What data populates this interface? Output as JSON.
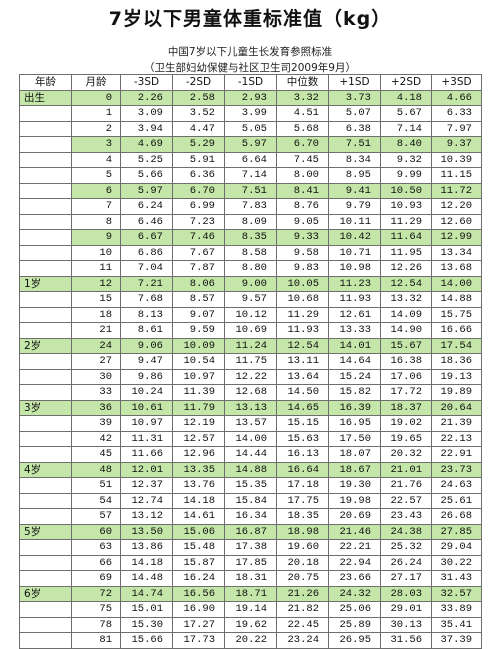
{
  "title": "7岁以下男童体重标准值（kg）",
  "subtitle": "中国7岁以下儿童生长发育参照标准",
  "source": "（卫生部妇幼保健与社区卫生司2009年9月）",
  "headers": [
    "年龄",
    "月龄",
    "-3SD",
    "-2SD",
    "-1SD",
    "中位数",
    "+1SD",
    "+2SD",
    "+3SD"
  ],
  "rows": [
    {
      "age": "出生",
      "month": "0",
      "values": [
        "2.26",
        "2.58",
        "2.93",
        "3.32",
        "3.73",
        "4.18",
        "4.66"
      ],
      "green": true
    },
    {
      "age": "",
      "month": "1",
      "values": [
        "3.09",
        "3.52",
        "3.99",
        "4.51",
        "5.07",
        "5.67",
        "6.33"
      ],
      "green": false
    },
    {
      "age": "",
      "month": "2",
      "values": [
        "3.94",
        "4.47",
        "5.05",
        "5.68",
        "6.38",
        "7.14",
        "7.97"
      ],
      "green": false
    },
    {
      "age": "",
      "month": "3",
      "values": [
        "4.69",
        "5.29",
        "5.97",
        "6.70",
        "7.51",
        "8.40",
        "9.37"
      ],
      "green": true
    },
    {
      "age": "",
      "month": "4",
      "values": [
        "5.25",
        "5.91",
        "6.64",
        "7.45",
        "8.34",
        "9.32",
        "10.39"
      ],
      "green": false
    },
    {
      "age": "",
      "month": "5",
      "values": [
        "5.66",
        "6.36",
        "7.14",
        "8.00",
        "8.95",
        "9.99",
        "11.15"
      ],
      "green": false
    },
    {
      "age": "",
      "month": "6",
      "values": [
        "5.97",
        "6.70",
        "7.51",
        "8.41",
        "9.41",
        "10.50",
        "11.72"
      ],
      "green": true
    },
    {
      "age": "",
      "month": "7",
      "values": [
        "6.24",
        "6.99",
        "7.83",
        "8.76",
        "9.79",
        "10.93",
        "12.20"
      ],
      "green": false
    },
    {
      "age": "",
      "month": "8",
      "values": [
        "6.46",
        "7.23",
        "8.09",
        "9.05",
        "10.11",
        "11.29",
        "12.60"
      ],
      "green": false
    },
    {
      "age": "",
      "month": "9",
      "values": [
        "6.67",
        "7.46",
        "8.35",
        "9.33",
        "10.42",
        "11.64",
        "12.99"
      ],
      "green": true
    },
    {
      "age": "",
      "month": "10",
      "values": [
        "6.86",
        "7.67",
        "8.58",
        "9.58",
        "10.71",
        "11.95",
        "13.34"
      ],
      "green": false
    },
    {
      "age": "",
      "month": "11",
      "values": [
        "7.04",
        "7.87",
        "8.80",
        "9.83",
        "10.98",
        "12.26",
        "13.68"
      ],
      "green": false
    },
    {
      "age": "1岁",
      "month": "12",
      "values": [
        "7.21",
        "8.06",
        "9.00",
        "10.05",
        "11.23",
        "12.54",
        "14.00"
      ],
      "green": true
    },
    {
      "age": "",
      "month": "15",
      "values": [
        "7.68",
        "8.57",
        "9.57",
        "10.68",
        "11.93",
        "13.32",
        "14.88"
      ],
      "green": false
    },
    {
      "age": "",
      "month": "18",
      "values": [
        "8.13",
        "9.07",
        "10.12",
        "11.29",
        "12.61",
        "14.09",
        "15.75"
      ],
      "green": false
    },
    {
      "age": "",
      "month": "21",
      "values": [
        "8.61",
        "9.59",
        "10.69",
        "11.93",
        "13.33",
        "14.90",
        "16.66"
      ],
      "green": false
    },
    {
      "age": "2岁",
      "month": "24",
      "values": [
        "9.06",
        "10.09",
        "11.24",
        "12.54",
        "14.01",
        "15.67",
        "17.54"
      ],
      "green": true
    },
    {
      "age": "",
      "month": "27",
      "values": [
        "9.47",
        "10.54",
        "11.75",
        "13.11",
        "14.64",
        "16.38",
        "18.36"
      ],
      "green": false
    },
    {
      "age": "",
      "month": "30",
      "values": [
        "9.86",
        "10.97",
        "12.22",
        "13.64",
        "15.24",
        "17.06",
        "19.13"
      ],
      "green": false
    },
    {
      "age": "",
      "month": "33",
      "values": [
        "10.24",
        "11.39",
        "12.68",
        "14.50",
        "15.82",
        "17.72",
        "19.89"
      ],
      "green": false
    },
    {
      "age": "3岁",
      "month": "36",
      "values": [
        "10.61",
        "11.79",
        "13.13",
        "14.65",
        "16.39",
        "18.37",
        "20.64"
      ],
      "green": true
    },
    {
      "age": "",
      "month": "39",
      "values": [
        "10.97",
        "12.19",
        "13.57",
        "15.15",
        "16.95",
        "19.02",
        "21.39"
      ],
      "green": false
    },
    {
      "age": "",
      "month": "42",
      "values": [
        "11.31",
        "12.57",
        "14.00",
        "15.63",
        "17.50",
        "19.65",
        "22.13"
      ],
      "green": false
    },
    {
      "age": "",
      "month": "45",
      "values": [
        "11.66",
        "12.96",
        "14.44",
        "16.13",
        "18.07",
        "20.32",
        "22.91"
      ],
      "green": false
    },
    {
      "age": "4岁",
      "month": "48",
      "values": [
        "12.01",
        "13.35",
        "14.88",
        "16.64",
        "18.67",
        "21.01",
        "23.73"
      ],
      "green": true
    },
    {
      "age": "",
      "month": "51",
      "values": [
        "12.37",
        "13.76",
        "15.35",
        "17.18",
        "19.30",
        "21.76",
        "24.63"
      ],
      "green": false
    },
    {
      "age": "",
      "month": "54",
      "values": [
        "12.74",
        "14.18",
        "15.84",
        "17.75",
        "19.98",
        "22.57",
        "25.61"
      ],
      "green": false
    },
    {
      "age": "",
      "month": "57",
      "values": [
        "13.12",
        "14.61",
        "16.34",
        "18.35",
        "20.69",
        "23.43",
        "26.68"
      ],
      "green": false
    },
    {
      "age": "5岁",
      "month": "60",
      "values": [
        "13.50",
        "15.06",
        "16.87",
        "18.98",
        "21.46",
        "24.38",
        "27.85"
      ],
      "green": true
    },
    {
      "age": "",
      "month": "63",
      "values": [
        "13.86",
        "15.48",
        "17.38",
        "19.60",
        "22.21",
        "25.32",
        "29.04"
      ],
      "green": false
    },
    {
      "age": "",
      "month": "66",
      "values": [
        "14.18",
        "15.87",
        "17.85",
        "20.18",
        "22.94",
        "26.24",
        "30.22"
      ],
      "green": false
    },
    {
      "age": "",
      "month": "69",
      "values": [
        "14.48",
        "16.24",
        "18.31",
        "20.75",
        "23.66",
        "27.17",
        "31.43"
      ],
      "green": false
    },
    {
      "age": "6岁",
      "month": "72",
      "values": [
        "14.74",
        "16.56",
        "18.71",
        "21.26",
        "24.32",
        "28.03",
        "32.57"
      ],
      "green": true
    },
    {
      "age": "",
      "month": "75",
      "values": [
        "15.01",
        "16.90",
        "19.14",
        "21.82",
        "25.06",
        "29.01",
        "33.89"
      ],
      "green": false
    },
    {
      "age": "",
      "month": "78",
      "values": [
        "15.30",
        "17.27",
        "19.62",
        "22.45",
        "25.89",
        "30.13",
        "35.41"
      ],
      "green": false
    },
    {
      "age": "",
      "month": "81",
      "values": [
        "15.66",
        "17.73",
        "20.22",
        "23.24",
        "26.95",
        "31.56",
        "37.39"
      ],
      "green": false
    }
  ]
}
